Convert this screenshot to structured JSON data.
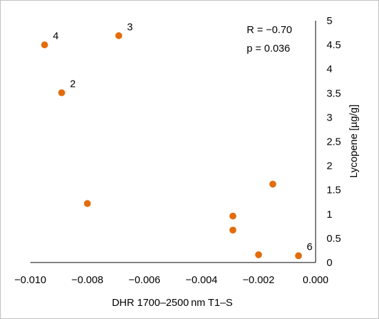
{
  "chart_data": {
    "type": "scatter",
    "xlabel": "DHR 1700–2500 nm T1–S",
    "ylabel": "Lycopene  [µg/g]",
    "xlim": [
      -0.01,
      0.0
    ],
    "ylim": [
      0,
      5
    ],
    "x_ticks": [
      -0.01,
      -0.008,
      -0.006,
      -0.004,
      -0.002,
      0.0
    ],
    "x_tick_labels": [
      "−0.010",
      "−0.008",
      "−0.006",
      "−0.004",
      "−0.002",
      "0.000"
    ],
    "y_ticks": [
      0,
      0.5,
      1,
      1.5,
      2,
      2.5,
      3,
      3.5,
      4,
      4.5,
      5
    ],
    "y_tick_labels": [
      "0",
      "0.5",
      "1",
      "1.5",
      "2",
      "2.5",
      "3",
      "3.5",
      "4",
      "4.5",
      "5"
    ],
    "y_axis_position": "right",
    "grid": false,
    "marker_color": "#e36c0a",
    "points": [
      {
        "x": -0.0095,
        "y": 4.5,
        "label": "4"
      },
      {
        "x": -0.0069,
        "y": 4.69,
        "label": "3"
      },
      {
        "x": -0.0089,
        "y": 3.51,
        "label": "2"
      },
      {
        "x": -0.008,
        "y": 1.22,
        "label": ""
      },
      {
        "x": -0.0029,
        "y": 0.96,
        "label": ""
      },
      {
        "x": -0.0029,
        "y": 0.67,
        "label": ""
      },
      {
        "x": -0.0015,
        "y": 1.62,
        "label": ""
      },
      {
        "x": -0.002,
        "y": 0.16,
        "label": ""
      },
      {
        "x": -0.0006,
        "y": 0.14,
        "label": "6"
      }
    ],
    "annotations": [
      "R = −0.70",
      "p = 0.036"
    ]
  }
}
